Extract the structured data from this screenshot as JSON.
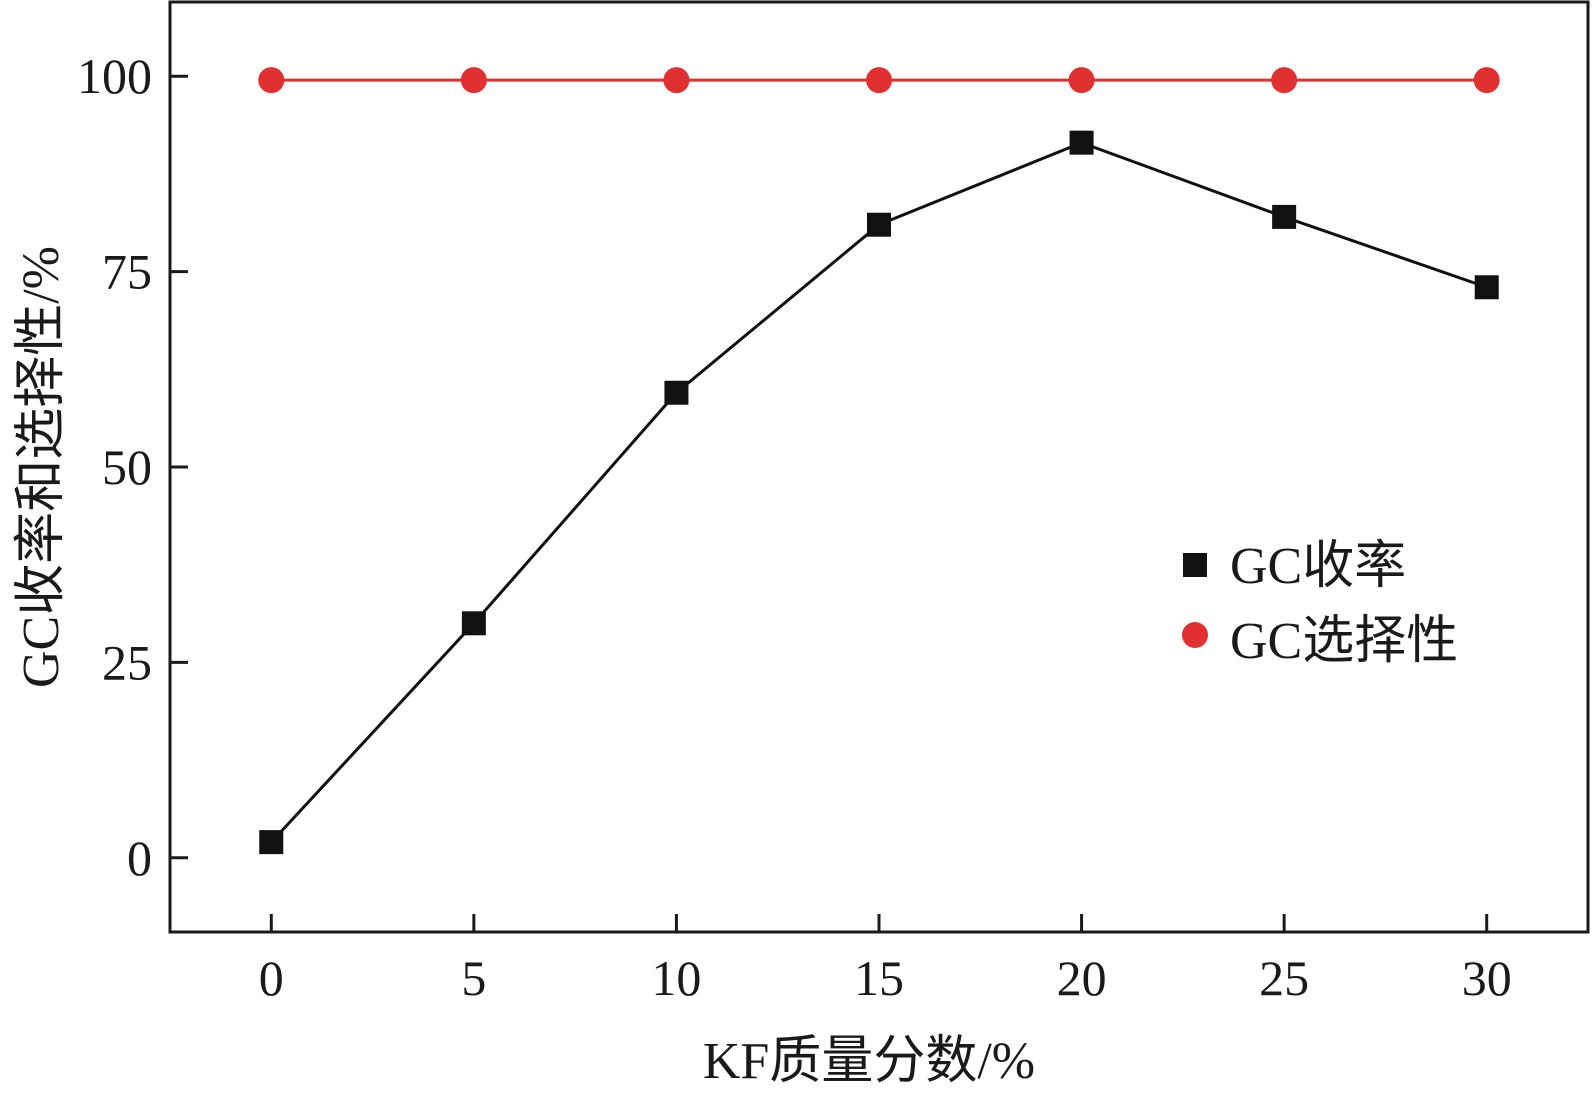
{
  "chart_data": {
    "type": "line",
    "title": "",
    "xlabel": "KF质量分数/%",
    "ylabel": "GC收率和选择性/%",
    "x": [
      0,
      5,
      10,
      15,
      20,
      25,
      30
    ],
    "x_ticks": [
      0,
      5,
      10,
      15,
      20,
      25,
      30
    ],
    "y_ticks": [
      0,
      25,
      50,
      75,
      100
    ],
    "xlim": [
      -2.5,
      32.5
    ],
    "ylim": [
      -9.5,
      109.5
    ],
    "grid": false,
    "legend_position": "right-middle",
    "series": [
      {
        "name": "GC收率",
        "marker": "square",
        "color": "#111111",
        "values": [
          2,
          30,
          59.5,
          81,
          91.5,
          82,
          73
        ]
      },
      {
        "name": "GC选择性",
        "marker": "circle",
        "color": "#e03030",
        "values": [
          99.5,
          99.5,
          99.5,
          99.5,
          99.5,
          99.5,
          99.5
        ]
      }
    ]
  }
}
